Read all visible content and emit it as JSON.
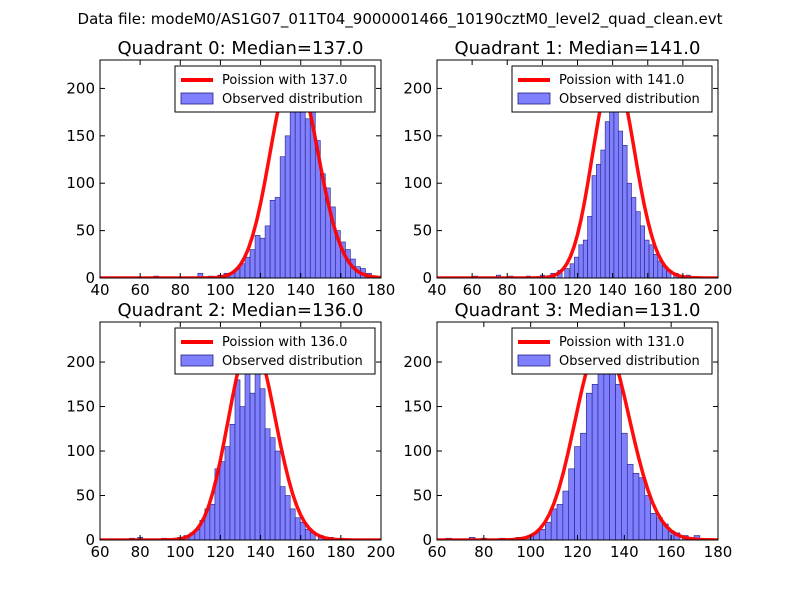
{
  "figure_title": "Data file: modeM0/AS1G07_011T04_9000001466_10190cztM0_level2_quad_clean.evt",
  "colors": {
    "poisson": "#ff0000",
    "bars": "#8080ff",
    "bar_edge": "#20207f"
  },
  "chart_data": [
    {
      "type": "bar",
      "title": "Quadrant 0: Median=137.0",
      "legend": {
        "line": "Poission with 137.0",
        "bars": "Observed distribution",
        "placement": "top-right"
      },
      "xlim": [
        40,
        180
      ],
      "ylim": [
        0,
        230
      ],
      "xticks": [
        40,
        60,
        80,
        100,
        120,
        140,
        160,
        180
      ],
      "yticks": [
        0,
        50,
        100,
        150,
        200
      ],
      "bin_width": 2.5,
      "bins": [
        [
          58,
          1
        ],
        [
          68,
          2
        ],
        [
          75,
          1
        ],
        [
          83,
          1
        ],
        [
          90,
          5
        ],
        [
          95,
          2
        ],
        [
          100,
          3
        ],
        [
          103,
          5
        ],
        [
          106,
          6
        ],
        [
          108.5,
          10
        ],
        [
          111,
          15
        ],
        [
          113.5,
          22
        ],
        [
          116,
          30
        ],
        [
          118.5,
          45
        ],
        [
          121,
          42
        ],
        [
          123.5,
          55
        ],
        [
          126,
          82
        ],
        [
          128.5,
          85
        ],
        [
          131,
          128
        ],
        [
          133.5,
          150
        ],
        [
          136,
          195
        ],
        [
          138.5,
          185
        ],
        [
          141,
          220
        ],
        [
          143.5,
          168
        ],
        [
          146,
          185
        ],
        [
          148.5,
          145
        ],
        [
          151,
          110
        ],
        [
          153.5,
          95
        ],
        [
          156,
          75
        ],
        [
          158.5,
          50
        ],
        [
          161,
          38
        ],
        [
          163.5,
          30
        ],
        [
          166,
          20
        ],
        [
          168.5,
          12
        ],
        [
          171,
          10
        ],
        [
          174,
          5
        ],
        [
          177,
          2
        ]
      ],
      "poisson": {
        "mean": 137.0,
        "peak": 222
      }
    },
    {
      "type": "bar",
      "title": "Quadrant 1: Median=141.0",
      "legend": {
        "line": "Poission with 141.0",
        "bars": "Observed distribution",
        "placement": "top-right"
      },
      "xlim": [
        40,
        200
      ],
      "ylim": [
        0,
        230
      ],
      "xticks": [
        40,
        60,
        80,
        100,
        120,
        140,
        160,
        180,
        200
      ],
      "yticks": [
        0,
        50,
        100,
        150,
        200
      ],
      "bin_width": 2.5,
      "bins": [
        [
          62,
          2
        ],
        [
          75,
          3
        ],
        [
          82,
          2
        ],
        [
          92,
          2
        ],
        [
          100,
          3
        ],
        [
          106,
          5
        ],
        [
          110,
          8
        ],
        [
          114,
          10
        ],
        [
          117,
          15
        ],
        [
          119.5,
          22
        ],
        [
          122,
          35
        ],
        [
          124.5,
          40
        ],
        [
          127,
          65
        ],
        [
          129.5,
          108
        ],
        [
          132,
          120
        ],
        [
          134.5,
          135
        ],
        [
          137,
          165
        ],
        [
          139.5,
          180
        ],
        [
          142,
          220
        ],
        [
          144.5,
          155
        ],
        [
          147,
          140
        ],
        [
          149.5,
          100
        ],
        [
          152,
          85
        ],
        [
          154.5,
          70
        ],
        [
          157,
          55
        ],
        [
          159.5,
          40
        ],
        [
          162,
          35
        ],
        [
          164.5,
          25
        ],
        [
          167,
          18
        ],
        [
          169.5,
          12
        ],
        [
          172,
          8
        ],
        [
          176,
          5
        ],
        [
          183,
          3
        ]
      ],
      "poisson": {
        "mean": 141.0,
        "peak": 219
      }
    },
    {
      "type": "bar",
      "title": "Quadrant 2: Median=136.0",
      "legend": {
        "line": "Poission with 136.0",
        "bars": "Observed distribution",
        "placement": "top-right"
      },
      "xlim": [
        60,
        200
      ],
      "ylim": [
        0,
        245
      ],
      "xticks": [
        60,
        80,
        100,
        120,
        140,
        160,
        180,
        200
      ],
      "yticks": [
        0,
        50,
        100,
        150,
        200
      ],
      "bin_width": 2.5,
      "bins": [
        [
          76,
          2
        ],
        [
          80,
          3
        ],
        [
          92,
          2
        ],
        [
          100,
          3
        ],
        [
          103,
          5
        ],
        [
          106,
          8
        ],
        [
          108.5,
          12
        ],
        [
          111,
          22
        ],
        [
          113.5,
          35
        ],
        [
          116,
          40
        ],
        [
          118.5,
          80
        ],
        [
          121,
          88
        ],
        [
          123.5,
          105
        ],
        [
          126,
          130
        ],
        [
          128.5,
          180
        ],
        [
          131,
          150
        ],
        [
          133.5,
          235
        ],
        [
          136,
          165
        ],
        [
          138.5,
          195
        ],
        [
          141,
          170
        ],
        [
          143.5,
          125
        ],
        [
          146,
          115
        ],
        [
          148.5,
          100
        ],
        [
          151,
          60
        ],
        [
          153.5,
          50
        ],
        [
          156,
          35
        ],
        [
          158.5,
          25
        ],
        [
          161,
          20
        ],
        [
          163.5,
          12
        ],
        [
          166,
          8
        ],
        [
          170,
          5
        ],
        [
          175,
          3
        ],
        [
          180,
          2
        ]
      ],
      "poisson": {
        "mean": 136.0,
        "peak": 225
      }
    },
    {
      "type": "bar",
      "title": "Quadrant 3: Median=131.0",
      "legend": {
        "line": "Poission with 131.0",
        "bars": "Observed distribution",
        "placement": "top-right"
      },
      "xlim": [
        60,
        180
      ],
      "ylim": [
        0,
        245
      ],
      "xticks": [
        60,
        80,
        100,
        120,
        140,
        160,
        180
      ],
      "yticks": [
        0,
        50,
        100,
        150,
        200
      ],
      "bin_width": 2.5,
      "bins": [
        [
          65,
          2
        ],
        [
          75,
          3
        ],
        [
          80,
          2
        ],
        [
          88,
          2
        ],
        [
          95,
          3
        ],
        [
          100,
          5
        ],
        [
          102.5,
          8
        ],
        [
          105,
          12
        ],
        [
          107.5,
          20
        ],
        [
          110,
          35
        ],
        [
          112.5,
          40
        ],
        [
          115,
          55
        ],
        [
          117.5,
          80
        ],
        [
          120,
          105
        ],
        [
          122.5,
          120
        ],
        [
          125,
          165
        ],
        [
          127.5,
          175
        ],
        [
          130,
          215
        ],
        [
          132.5,
          190
        ],
        [
          135,
          215
        ],
        [
          137.5,
          175
        ],
        [
          140,
          120
        ],
        [
          142.5,
          85
        ],
        [
          145,
          75
        ],
        [
          147.5,
          70
        ],
        [
          150,
          50
        ],
        [
          152.5,
          30
        ],
        [
          155,
          25
        ],
        [
          157.5,
          18
        ],
        [
          160,
          10
        ],
        [
          162.5,
          8
        ],
        [
          166,
          5
        ],
        [
          171,
          5
        ]
      ],
      "poisson": {
        "mean": 131.0,
        "peak": 226
      }
    }
  ]
}
